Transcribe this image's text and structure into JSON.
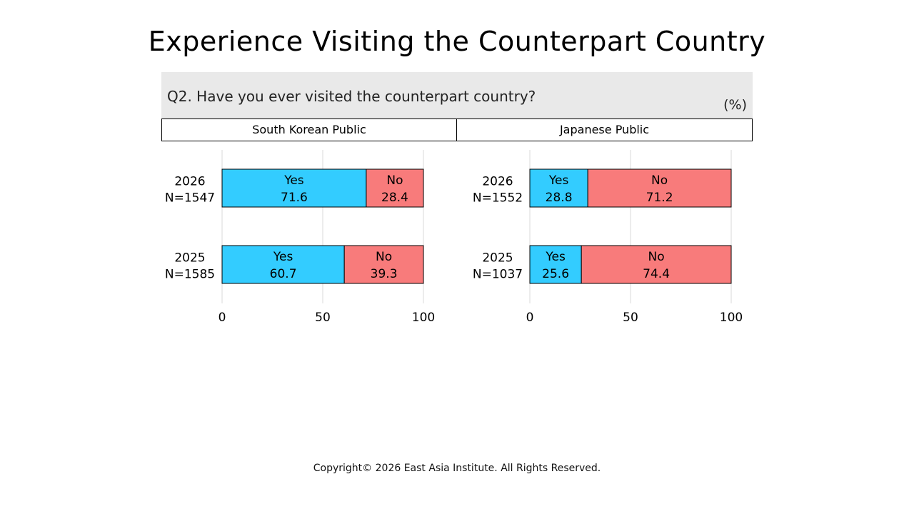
{
  "title": "Experience Visiting the Counterpart Country",
  "question": "Q2. Have you ever visited the counterpart country?",
  "unit": "(%)",
  "footer": "Copyright© 2026 East Asia Institute. All Rights Reserved.",
  "colors": {
    "yes": "#33ccff",
    "no": "#f87b7b",
    "band": "#e9e9e9",
    "grid": "#d9d9d9"
  },
  "chart_data": [
    {
      "type": "bar",
      "orientation": "horizontal",
      "stacked": true,
      "panel_title": "South Korean Public",
      "categories": [
        "2026\nN=1547",
        "2025\nN=1585"
      ],
      "series": [
        {
          "name": "Yes",
          "values": [
            71.6,
            60.7
          ]
        },
        {
          "name": "No",
          "values": [
            28.4,
            39.3
          ]
        }
      ],
      "xlim": [
        0,
        100
      ],
      "xticks": [
        0,
        50,
        100
      ],
      "grid": true
    },
    {
      "type": "bar",
      "orientation": "horizontal",
      "stacked": true,
      "panel_title": "Japanese Public",
      "categories": [
        "2026\nN=1552",
        "2025\nN=1037"
      ],
      "series": [
        {
          "name": "Yes",
          "values": [
            28.8,
            25.6
          ]
        },
        {
          "name": "No",
          "values": [
            71.2,
            74.4
          ]
        }
      ],
      "xlim": [
        0,
        100
      ],
      "xticks": [
        0,
        50,
        100
      ],
      "grid": true
    }
  ]
}
